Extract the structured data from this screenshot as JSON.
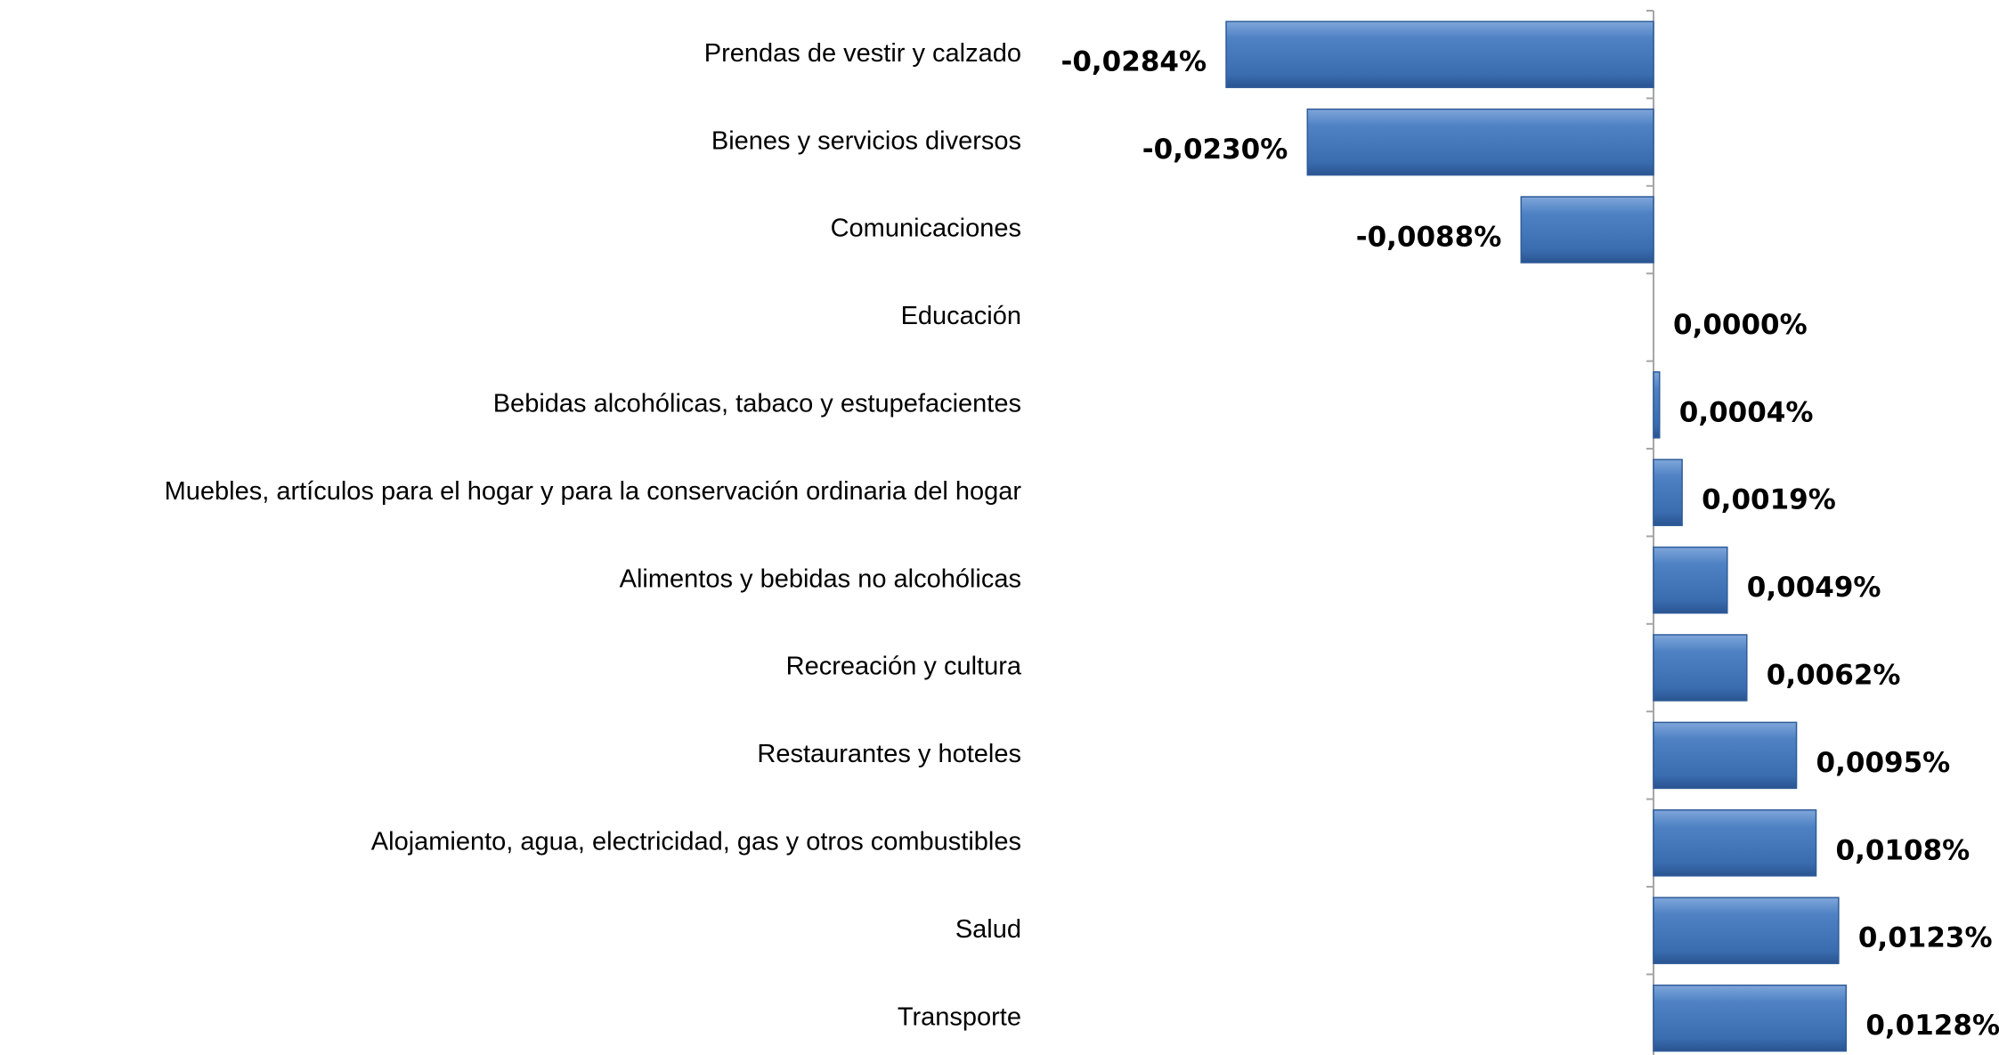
{
  "chart_data": {
    "type": "bar",
    "orientation": "horizontal",
    "categories": [
      "Prendas de vestir y calzado",
      "Bienes y servicios diversos",
      "Comunicaciones",
      "Educación",
      "Bebidas alcohólicas, tabaco y estupefacientes",
      "Muebles, artículos para el hogar y para la conservación ordinaria del hogar",
      "Alimentos y bebidas no alcohólicas",
      "Recreación y cultura",
      "Restaurantes y hoteles",
      "Alojamiento, agua, electricidad, gas y otros combustibles",
      "Salud",
      "Transporte"
    ],
    "values": [
      -0.0284,
      -0.023,
      -0.0088,
      0.0,
      0.0004,
      0.0019,
      0.0049,
      0.0062,
      0.0095,
      0.0108,
      0.0123,
      0.0128
    ],
    "value_labels": [
      "-0,0284%",
      "-0,0230%",
      "-0,0088%",
      "0,0000%",
      "0,0004%",
      "0,0019%",
      "0,0049%",
      "0,0062%",
      "0,0095%",
      "0,0108%",
      "0,0123%",
      "0,0128%"
    ],
    "color": "#4a7ebb"
  }
}
